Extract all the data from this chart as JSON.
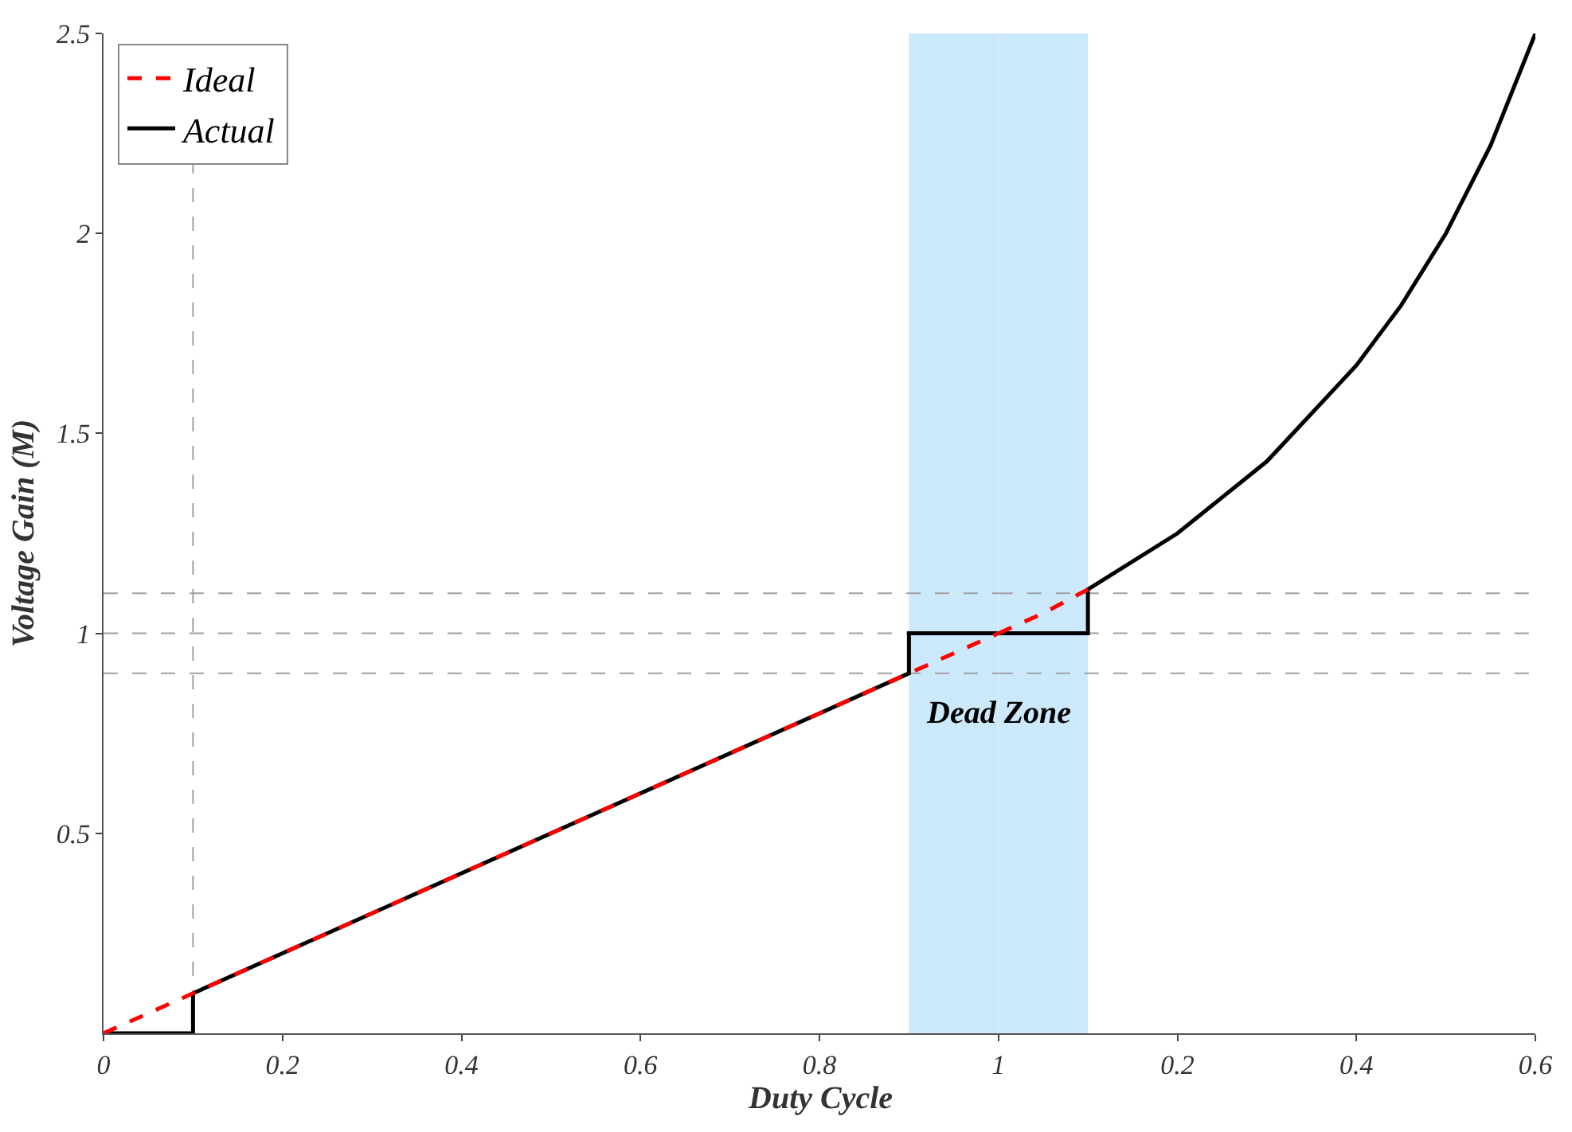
{
  "chart_data": [
    {
      "type": "line",
      "xlabel": "Duty Cycle",
      "ylabel": "Voltage Gain (M)",
      "xlim": [
        0,
        1
      ],
      "ylim": [
        0,
        2.5
      ],
      "xticks": [
        0,
        0.2,
        0.4,
        0.6,
        0.8,
        1
      ],
      "yticks": [
        0.5,
        1,
        1.5,
        2,
        2.5
      ],
      "series": [
        {
          "name": "Ideal",
          "color": "#ff0000",
          "line_style": "dashed",
          "x": [
            0,
            1
          ],
          "values": [
            0,
            1
          ]
        },
        {
          "name": "Actual",
          "color": "#000000",
          "line_style": "solid",
          "x": [
            0,
            0.1,
            0.1,
            0.9,
            0.9,
            1
          ],
          "values": [
            0,
            0,
            0.1,
            0.9,
            1,
            1
          ]
        }
      ],
      "ref_lines": [
        {
          "axis": "x",
          "value": 0.1,
          "color": "#a0a0a0",
          "line_style": "dashed"
        },
        {
          "axis": "y",
          "value": 0.9,
          "color": "#a0a0a0",
          "line_style": "dashed"
        },
        {
          "axis": "y",
          "value": 1,
          "color": "#a0a0a0",
          "line_style": "dashed"
        },
        {
          "axis": "y",
          "value": 1.1,
          "color": "#a0a0a0",
          "line_style": "dashed"
        }
      ],
      "bands": [
        {
          "axis": "x",
          "from": 0.9,
          "to": 1,
          "label": "Dead Zone",
          "color": "#cce9fb"
        }
      ],
      "legend": "top left",
      "grid": false,
      "marker": "none"
    },
    {
      "type": "line",
      "xlim": [
        0,
        0.6
      ],
      "ylim": [
        0,
        2.5
      ],
      "xticks": [
        0.2,
        0.4,
        0.6
      ],
      "tick_labels": "x",
      "series": [
        {
          "color": "#ff0000",
          "line_style": "dashed",
          "x": [
            0,
            0.05,
            0.1
          ],
          "values": [
            1,
            1.05,
            1.11
          ]
        },
        {
          "color": "#000000",
          "line_style": "solid",
          "x": [
            0,
            0.1,
            0.1,
            0.2,
            0.3,
            0.4,
            0.45,
            0.5,
            0.55,
            0.6
          ],
          "values": [
            1,
            1,
            1.11,
            1.25,
            1.43,
            1.67,
            1.82,
            2,
            2.22,
            2.5
          ]
        }
      ],
      "ref_lines": [
        {
          "axis": "y",
          "value": 0.9,
          "color": "#a0a0a0",
          "line_style": "dashed"
        },
        {
          "axis": "y",
          "value": 1,
          "color": "#a0a0a0",
          "line_style": "dashed"
        },
        {
          "axis": "y",
          "value": 1.1,
          "color": "#a0a0a0",
          "line_style": "dashed"
        }
      ],
      "bands": [
        {
          "axis": "x",
          "from": 0,
          "to": 0.1,
          "color": "#cce9fb"
        }
      ],
      "grid": false,
      "marker": "none"
    }
  ]
}
